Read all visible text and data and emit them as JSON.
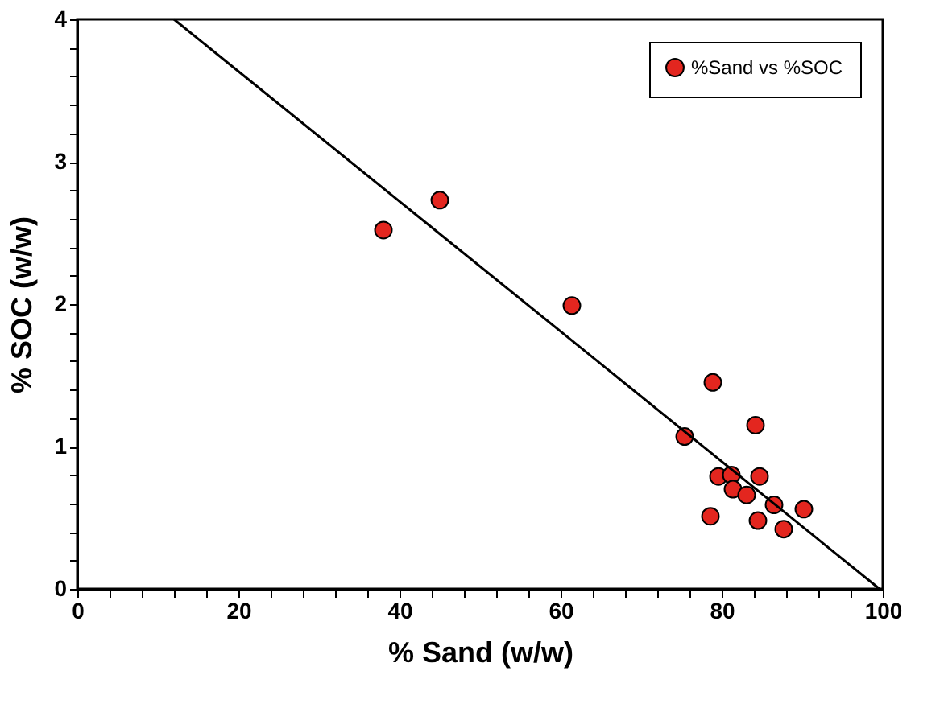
{
  "chart_data": {
    "type": "scatter",
    "xlabel": "% Sand (w/w)",
    "ylabel": "% SOC (w/w)",
    "xlim": [
      0,
      100
    ],
    "ylim": [
      0,
      4
    ],
    "xticks": [
      0,
      {
        "value": 4,
        "label": null
      },
      {
        "value": 8,
        "label": null
      },
      {
        "value": 12,
        "label": null
      },
      {
        "value": 16,
        "label": null
      },
      20,
      {
        "value": 24,
        "label": null
      },
      {
        "value": 28,
        "label": null
      },
      {
        "value": 32,
        "label": null
      },
      {
        "value": 36,
        "label": null
      },
      40,
      {
        "value": 44,
        "label": null
      },
      {
        "value": 48,
        "label": null
      },
      {
        "value": 52,
        "label": null
      },
      {
        "value": 56,
        "label": null
      },
      60,
      {
        "value": 64,
        "label": null
      },
      {
        "value": 68,
        "label": null
      },
      {
        "value": 72,
        "label": null
      },
      {
        "value": 76,
        "label": null
      },
      80,
      {
        "value": 84,
        "label": null
      },
      {
        "value": 88,
        "label": null
      },
      {
        "value": 92,
        "label": null
      },
      {
        "value": 96,
        "label": null
      },
      100
    ],
    "yticks": [
      0,
      {
        "value": 0.2,
        "label": null
      },
      {
        "value": 0.4,
        "label": null
      },
      {
        "value": 0.6,
        "label": null
      },
      {
        "value": 0.8,
        "label": null
      },
      1,
      {
        "value": 1.2,
        "label": null
      },
      {
        "value": 1.4,
        "label": null
      },
      {
        "value": 1.6,
        "label": null
      },
      {
        "value": 1.8,
        "label": null
      },
      2,
      {
        "value": 2.2,
        "label": null
      },
      {
        "value": 2.4,
        "label": null
      },
      {
        "value": 2.6,
        "label": null
      },
      {
        "value": 2.8,
        "label": null
      },
      3,
      {
        "value": 3.2,
        "label": null
      },
      {
        "value": 3.4,
        "label": null
      },
      {
        "value": 3.6,
        "label": null
      },
      {
        "value": 3.8,
        "label": null
      },
      4
    ],
    "grid": false,
    "legend": "top right",
    "marker": "circle",
    "series": [
      {
        "name": "%Sand vs %SOC",
        "type": "scatter",
        "color": "#e3261f",
        "x": [
          38.0,
          45.0,
          61.4,
          78.9,
          75.4,
          84.2,
          79.6,
          81.2,
          81.4,
          83.1,
          84.7,
          86.5,
          90.2,
          78.6,
          84.5,
          87.7
        ],
        "values": [
          2.52,
          2.73,
          1.99,
          1.45,
          1.07,
          1.15,
          0.79,
          0.8,
          0.7,
          0.66,
          0.79,
          0.59,
          0.56,
          0.51,
          0.48,
          0.42
        ]
      },
      {
        "type": "line",
        "color": "#000000",
        "line_style": "solid",
        "marker": "none",
        "x": [
          12.0,
          99.6
        ],
        "values": [
          4,
          0
        ]
      }
    ]
  }
}
